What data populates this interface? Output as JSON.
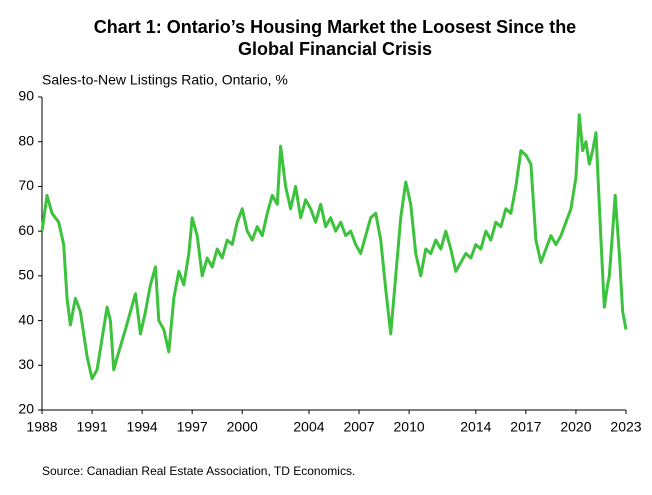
{
  "chart_data": {
    "type": "line",
    "title": "Chart 1: Ontario’s Housing Market the Loosest Since the",
    "title_line2": "Global Financial Crisis",
    "subtitle": "Sales-to-New Listings Ratio, Ontario, %",
    "source": "Source: Canadian Real Estate Association, TD Economics.",
    "x": [
      1988.0,
      1988.3,
      1988.6,
      1989.0,
      1989.3,
      1989.5,
      1989.7,
      1990.0,
      1990.3,
      1990.7,
      1991.0,
      1991.3,
      1991.6,
      1991.9,
      1992.1,
      1992.3,
      1992.6,
      1993.0,
      1993.3,
      1993.6,
      1993.9,
      1994.2,
      1994.5,
      1994.8,
      1995.0,
      1995.3,
      1995.6,
      1995.9,
      1996.2,
      1996.5,
      1996.8,
      1997.0,
      1997.3,
      1997.6,
      1997.9,
      1998.2,
      1998.5,
      1998.8,
      1999.1,
      1999.4,
      1999.7,
      2000.0,
      2000.3,
      2000.6,
      2000.9,
      2001.2,
      2001.5,
      2001.8,
      2002.1,
      2002.3,
      2002.6,
      2002.9,
      2003.2,
      2003.5,
      2003.8,
      2004.1,
      2004.4,
      2004.7,
      2005.0,
      2005.3,
      2005.6,
      2005.9,
      2006.2,
      2006.5,
      2006.8,
      2007.1,
      2007.4,
      2007.7,
      2008.0,
      2008.3,
      2008.6,
      2008.9,
      2009.2,
      2009.5,
      2009.8,
      2010.1,
      2010.4,
      2010.7,
      2011.0,
      2011.3,
      2011.6,
      2011.9,
      2012.2,
      2012.5,
      2012.8,
      2013.1,
      2013.4,
      2013.7,
      2014.0,
      2014.3,
      2014.6,
      2014.9,
      2015.2,
      2015.5,
      2015.8,
      2016.1,
      2016.4,
      2016.7,
      2017.0,
      2017.3,
      2017.6,
      2017.9,
      2018.2,
      2018.5,
      2018.8,
      2019.1,
      2019.4,
      2019.7,
      2020.0,
      2020.2,
      2020.4,
      2020.6,
      2020.8,
      2021.0,
      2021.2,
      2021.5,
      2021.7,
      2021.9,
      2022.0,
      2022.2,
      2022.35,
      2022.6,
      2022.8,
      2023.0
    ],
    "series": [
      {
        "name": "Sales-to-New Listings Ratio",
        "color": "#3cc23c",
        "values": [
          60,
          68,
          64,
          62,
          57,
          45,
          39,
          45,
          42,
          32,
          27,
          29,
          36,
          43,
          40,
          29,
          33,
          38,
          42,
          46,
          37,
          42,
          48,
          52,
          40,
          38,
          33,
          45,
          51,
          48,
          55,
          63,
          59,
          50,
          54,
          52,
          56,
          54,
          58,
          57,
          62,
          65,
          60,
          58,
          61,
          59,
          64,
          68,
          66,
          79,
          70,
          65,
          70,
          63,
          67,
          65,
          62,
          66,
          61,
          63,
          60,
          62,
          59,
          60,
          57,
          55,
          59,
          63,
          64,
          58,
          47,
          37,
          50,
          63,
          71,
          66,
          55,
          50,
          56,
          55,
          58,
          56,
          60,
          56,
          51,
          53,
          55,
          54,
          57,
          56,
          60,
          58,
          62,
          61,
          65,
          64,
          70,
          78,
          77,
          75,
          58,
          53,
          56,
          59,
          57,
          59,
          62,
          65,
          72,
          86,
          78,
          80,
          75,
          78,
          82,
          58,
          43,
          48,
          50,
          60,
          68,
          55,
          42,
          38
        ]
      }
    ],
    "xlim": [
      1988,
      2023
    ],
    "xticks": [
      1988,
      1991,
      1994,
      1997,
      2000,
      2004,
      2007,
      2010,
      2014,
      2017,
      2020,
      2023
    ],
    "ylim": [
      20,
      90
    ],
    "yticks": [
      20,
      30,
      40,
      50,
      60,
      70,
      80,
      90
    ],
    "grid": false
  }
}
